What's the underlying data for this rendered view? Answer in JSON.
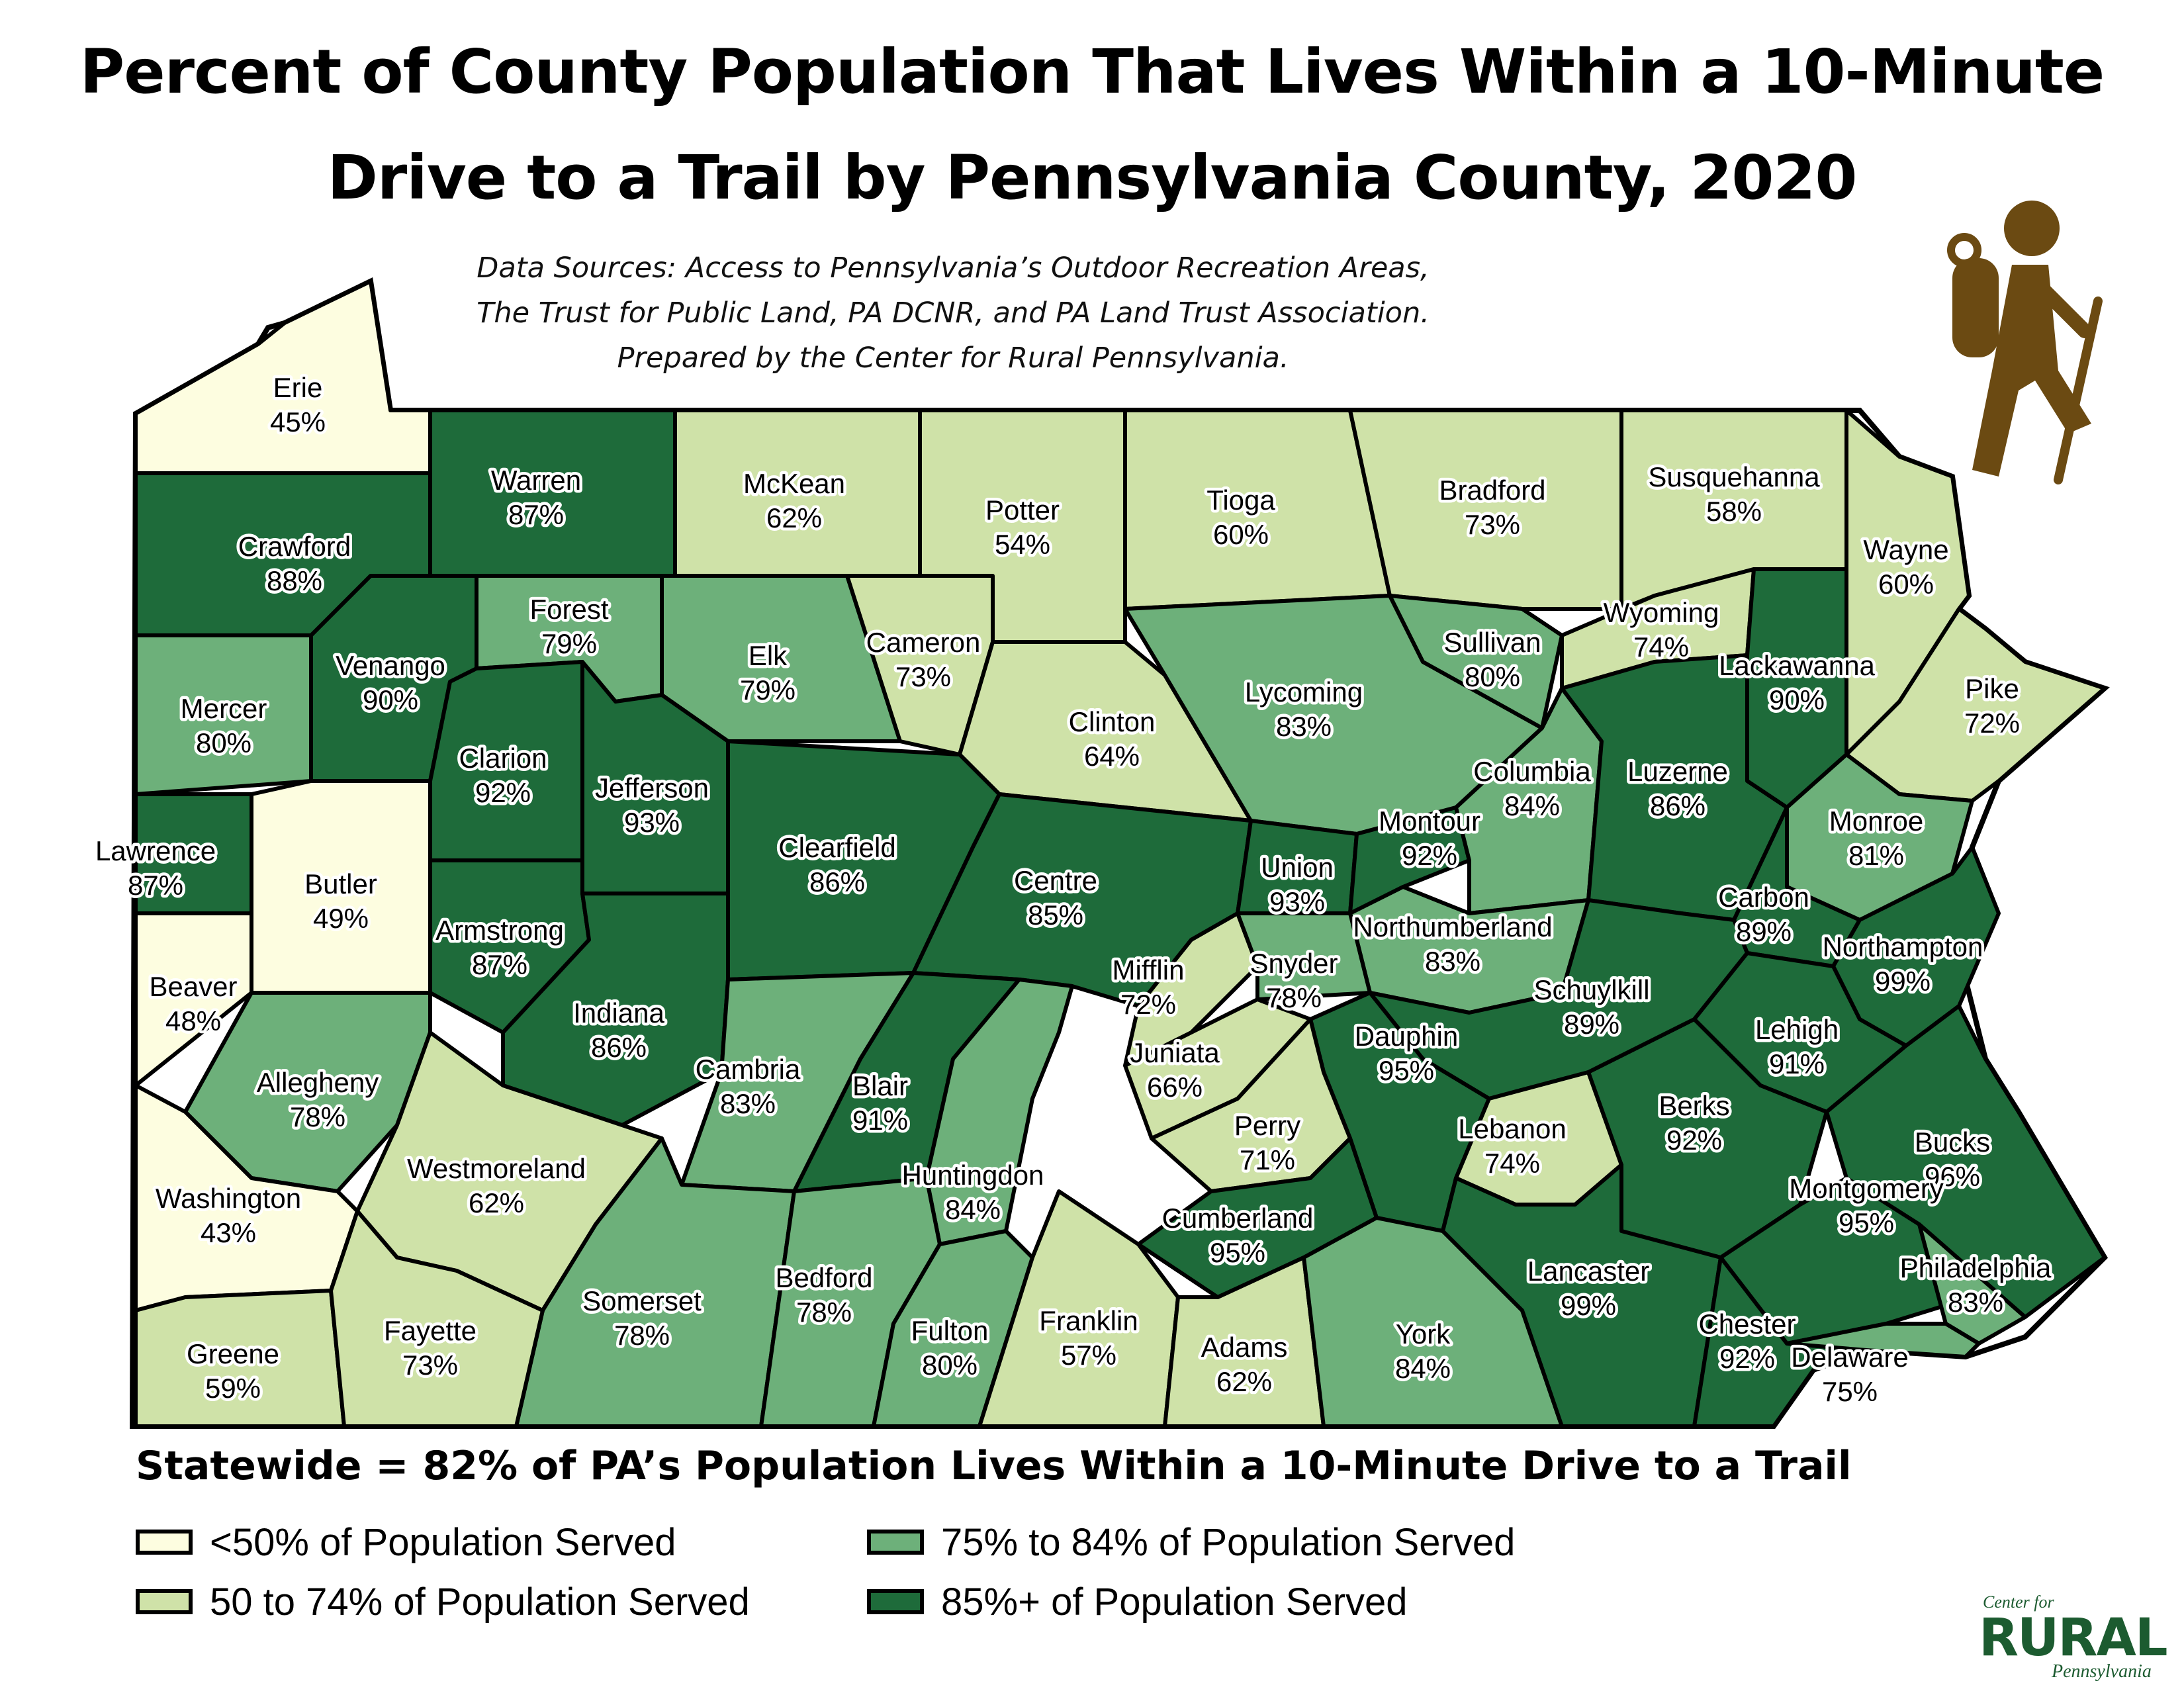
{
  "title_line1": "Percent of County Population That Lives Within a 10-Minute",
  "title_line2": "Drive to a Trail by Pennsylvania County, 2020",
  "sources": [
    "Data Sources: Access to Pennsylvania’s Outdoor Recreation Areas,",
    "The Trust for Public Land, PA DCNR, and PA Land Trust Association.",
    "Prepared by the Center for Rural Pennsylvania."
  ],
  "statewide": "Statewide = 82% of PA’s Population Lives Within a 10-Minute Drive to a Trail",
  "legend": [
    {
      "label": "<50% of Population Served",
      "color": "#fdfde0"
    },
    {
      "label": "75% to 84% of Population Served",
      "color": "#6db07a"
    },
    {
      "label": "50 to 74% of Population Served",
      "color": "#cfe2a8"
    },
    {
      "label": "85%+ of Population Served",
      "color": "#1e6b3a"
    }
  ],
  "icon": "hiker-icon",
  "logo": {
    "line1": "Center for",
    "line2": "RURAL",
    "line3": "Pennsylvania",
    "color": "#1c5b30"
  },
  "counties": [
    {
      "name": "Erie",
      "value": "45%"
    },
    {
      "name": "Crawford",
      "value": "88%"
    },
    {
      "name": "Warren",
      "value": "87%"
    },
    {
      "name": "McKean",
      "value": "62%"
    },
    {
      "name": "Potter",
      "value": "54%"
    },
    {
      "name": "Tioga",
      "value": "60%"
    },
    {
      "name": "Bradford",
      "value": "73%"
    },
    {
      "name": "Susquehanna",
      "value": "58%"
    },
    {
      "name": "Wayne",
      "value": "60%"
    },
    {
      "name": "Mercer",
      "value": "80%"
    },
    {
      "name": "Venango",
      "value": "90%"
    },
    {
      "name": "Forest",
      "value": "79%"
    },
    {
      "name": "Elk",
      "value": "79%"
    },
    {
      "name": "Cameron",
      "value": "73%"
    },
    {
      "name": "Clinton",
      "value": "64%"
    },
    {
      "name": "Lycoming",
      "value": "83%"
    },
    {
      "name": "Sullivan",
      "value": "80%"
    },
    {
      "name": "Wyoming",
      "value": "74%"
    },
    {
      "name": "Lackawanna",
      "value": "90%"
    },
    {
      "name": "Pike",
      "value": "72%"
    },
    {
      "name": "Lawrence",
      "value": "87%"
    },
    {
      "name": "Butler",
      "value": "49%"
    },
    {
      "name": "Clarion",
      "value": "92%"
    },
    {
      "name": "Jefferson",
      "value": "93%"
    },
    {
      "name": "Clearfield",
      "value": "86%"
    },
    {
      "name": "Centre",
      "value": "85%"
    },
    {
      "name": "Union",
      "value": "93%"
    },
    {
      "name": "Montour",
      "value": "92%"
    },
    {
      "name": "Columbia",
      "value": "84%"
    },
    {
      "name": "Luzerne",
      "value": "86%"
    },
    {
      "name": "Monroe",
      "value": "81%"
    },
    {
      "name": "Carbon",
      "value": "89%"
    },
    {
      "name": "Northumberland",
      "value": "83%"
    },
    {
      "name": "Armstrong",
      "value": "87%"
    },
    {
      "name": "Beaver",
      "value": "48%"
    },
    {
      "name": "Indiana",
      "value": "86%"
    },
    {
      "name": "Mifflin",
      "value": "72%"
    },
    {
      "name": "Snyder",
      "value": "78%"
    },
    {
      "name": "Northampton",
      "value": "99%"
    },
    {
      "name": "Schuylkill",
      "value": "89%"
    },
    {
      "name": "Allegheny",
      "value": "78%"
    },
    {
      "name": "Cambria",
      "value": "83%"
    },
    {
      "name": "Blair",
      "value": "91%"
    },
    {
      "name": "Juniata",
      "value": "66%"
    },
    {
      "name": "Dauphin",
      "value": "95%"
    },
    {
      "name": "Lehigh",
      "value": "91%"
    },
    {
      "name": "Westmoreland",
      "value": "62%"
    },
    {
      "name": "Huntingdon",
      "value": "84%"
    },
    {
      "name": "Perry",
      "value": "71%"
    },
    {
      "name": "Lebanon",
      "value": "74%"
    },
    {
      "name": "Berks",
      "value": "92%"
    },
    {
      "name": "Bucks",
      "value": "96%"
    },
    {
      "name": "Washington",
      "value": "43%"
    },
    {
      "name": "Cumberland",
      "value": "95%"
    },
    {
      "name": "Montgomery",
      "value": "95%"
    },
    {
      "name": "Somerset",
      "value": "78%"
    },
    {
      "name": "Bedford",
      "value": "78%"
    },
    {
      "name": "Fulton",
      "value": "80%"
    },
    {
      "name": "Franklin",
      "value": "57%"
    },
    {
      "name": "Adams",
      "value": "62%"
    },
    {
      "name": "York",
      "value": "84%"
    },
    {
      "name": "Lancaster",
      "value": "99%"
    },
    {
      "name": "Chester",
      "value": "92%"
    },
    {
      "name": "Philadelphia",
      "value": "83%"
    },
    {
      "name": "Delaware",
      "value": "75%"
    },
    {
      "name": "Greene",
      "value": "59%"
    },
    {
      "name": "Fayette",
      "value": "73%"
    }
  ]
}
